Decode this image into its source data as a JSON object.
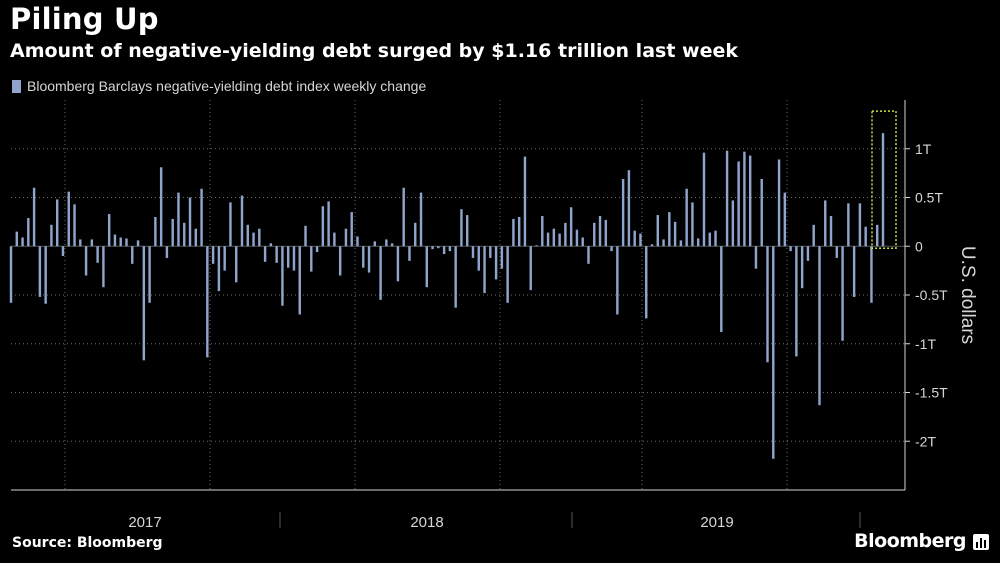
{
  "header": {
    "title": "Piling Up",
    "subtitle": "Amount of negative-yielding debt surged by $1.16 trillion last week"
  },
  "footer": {
    "source": "Source: Bloomberg",
    "brand": "Bloomberg"
  },
  "colors": {
    "background": "#000000",
    "bar": "#8fa5cc",
    "highlight": "#c8e04a",
    "grid": "#6a6a6a",
    "text": "#ffffff",
    "tick": "#d6d6d6"
  },
  "chart_data": {
    "type": "bar",
    "title": "Piling Up",
    "subtitle": "Amount of negative-yielding debt surged by $1.16 trillion last week",
    "legend": [
      "Bloomberg Barclays negative-yielding debt index weekly change"
    ],
    "legend_position": "top-left",
    "ylabel": "U.S. dollars",
    "ylim": [
      -2.5,
      1.5
    ],
    "yticks": [
      1,
      0.5,
      0,
      -0.5,
      -1,
      -1.5,
      -2
    ],
    "ytick_labels": [
      "1T",
      "0.5T",
      "0",
      "-0.5T",
      "-1T",
      "-1.5T",
      "-2T"
    ],
    "xlabel": "",
    "x_unit": "weekly, mid-2016 to Sep 2019",
    "year_labels": [
      "2017",
      "2018",
      "2019"
    ],
    "grid": true,
    "highlight_last": true,
    "series": [
      {
        "name": "Bloomberg Barclays negative-yielding debt index weekly change",
        "values": [
          -0.58,
          0.15,
          0.09,
          0.29,
          0.6,
          -0.52,
          -0.59,
          0.22,
          0.48,
          -0.1,
          0.56,
          0.43,
          0.07,
          -0.3,
          0.07,
          -0.17,
          -0.42,
          0.33,
          0.12,
          0.09,
          0.08,
          -0.18,
          0.06,
          -1.17,
          -0.58,
          0.3,
          0.81,
          -0.12,
          0.28,
          0.55,
          0.24,
          0.5,
          0.18,
          0.59,
          -1.14,
          -0.18,
          -0.46,
          -0.25,
          0.45,
          -0.37,
          0.52,
          0.22,
          0.14,
          0.18,
          -0.16,
          0.03,
          -0.17,
          -0.61,
          -0.22,
          -0.25,
          -0.7,
          0.21,
          -0.26,
          -0.06,
          0.41,
          0.46,
          0.14,
          -0.3,
          0.18,
          0.35,
          0.1,
          -0.22,
          -0.27,
          0.05,
          -0.55,
          0.07,
          0.03,
          -0.36,
          0.6,
          -0.15,
          0.24,
          0.55,
          -0.42,
          -0.03,
          -0.02,
          -0.08,
          -0.05,
          -0.63,
          0.38,
          0.32,
          -0.12,
          -0.25,
          -0.48,
          -0.12,
          -0.34,
          -0.23,
          -0.58,
          0.28,
          0.3,
          0.92,
          -0.45,
          0.01,
          0.31,
          0.14,
          0.18,
          0.13,
          0.24,
          0.4,
          0.17,
          0.09,
          -0.18,
          0.24,
          0.31,
          0.27,
          -0.05,
          -0.7,
          0.69,
          0.78,
          0.16,
          0.13,
          -0.74,
          0.02,
          0.32,
          0.07,
          0.35,
          0.25,
          0.06,
          0.59,
          0.45,
          0.08,
          0.96,
          0.14,
          0.16,
          -0.88,
          0.98,
          0.47,
          0.87,
          0.97,
          0.93,
          -0.23,
          0.69,
          -1.19,
          -2.18,
          0.89,
          0.55,
          -0.05,
          -1.13,
          -0.43,
          -0.15,
          0.22,
          -1.63,
          0.47,
          0.31,
          -0.12,
          -0.97,
          0.44,
          -0.52,
          0.44,
          0.2,
          -0.58,
          0.22,
          1.16
        ]
      }
    ]
  }
}
